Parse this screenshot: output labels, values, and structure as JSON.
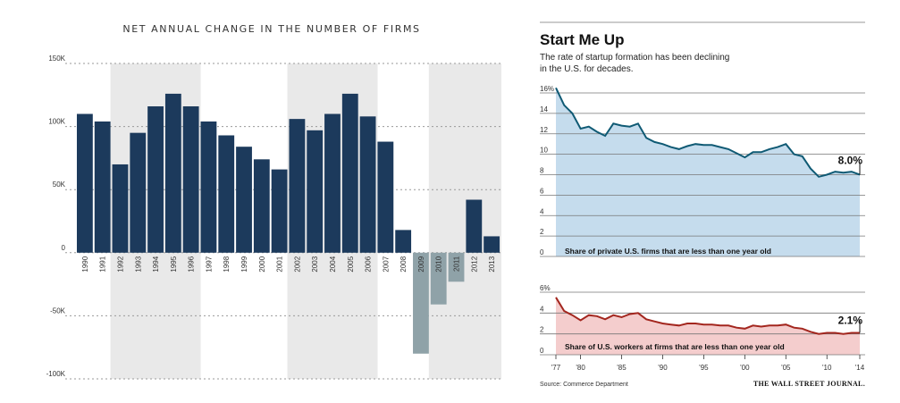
{
  "chart_data": [
    {
      "type": "bar",
      "title": "NET ANNUAL CHANGE IN THE NUMBER OF FIRMS",
      "ylim": [
        -100000,
        150000
      ],
      "ytick_labels": [
        "150K",
        "100K",
        "50K",
        "0",
        "-50K",
        "-100K"
      ],
      "ytick_values": [
        150000,
        100000,
        50000,
        0,
        -50000,
        -100000
      ],
      "grid": true,
      "categories": [
        "1990",
        "1991",
        "1992",
        "1993",
        "1994",
        "1995",
        "1996",
        "1997",
        "1998",
        "1999",
        "2000",
        "2001",
        "2002",
        "2003",
        "2004",
        "2005",
        "2006",
        "2007",
        "2008",
        "2009",
        "2010",
        "2011",
        "2012",
        "2013"
      ],
      "values": [
        110000,
        104000,
        70000,
        95000,
        116000,
        126000,
        116000,
        104000,
        93000,
        84000,
        74000,
        66000,
        106000,
        97000,
        110000,
        126000,
        108000,
        88000,
        18000,
        -80000,
        -41000,
        -23000,
        42000,
        13000
      ],
      "shaded_periods": [
        [
          "1992",
          "1996"
        ],
        [
          "2002",
          "2006"
        ],
        [
          "2010",
          "2013"
        ]
      ],
      "colors": {
        "positive": "#1c3a5c",
        "negative": "#8fa2a8",
        "shade": "#e9e9e9"
      }
    },
    {
      "type": "area",
      "title": "Start Me Up",
      "subtitle_lines": [
        "The rate of startup formation has been declining",
        "in the U.S. for decades."
      ],
      "caption": "Share of private U.S. firms that are less than one year old",
      "ylim": [
        0,
        16
      ],
      "ytick_labels": [
        "16%",
        "14",
        "12",
        "10",
        "8",
        "6",
        "4",
        "2",
        "0"
      ],
      "ytick_values": [
        16,
        14,
        12,
        10,
        8,
        6,
        4,
        2,
        0
      ],
      "end_label": "8.0%",
      "x": [
        1977,
        1978,
        1979,
        1980,
        1981,
        1982,
        1983,
        1984,
        1985,
        1986,
        1987,
        1988,
        1989,
        1990,
        1991,
        1992,
        1993,
        1994,
        1995,
        1996,
        1997,
        1998,
        1999,
        2000,
        2001,
        2002,
        2003,
        2004,
        2005,
        2006,
        2007,
        2008,
        2009,
        2010,
        2011,
        2012,
        2013,
        2014
      ],
      "values": [
        16.5,
        14.8,
        14.0,
        12.5,
        12.7,
        12.2,
        11.8,
        13.0,
        12.8,
        12.7,
        13.0,
        11.6,
        11.2,
        11.0,
        10.7,
        10.5,
        10.8,
        11.0,
        10.9,
        10.9,
        10.7,
        10.5,
        10.1,
        9.7,
        10.2,
        10.2,
        10.5,
        10.7,
        11.0,
        10.0,
        9.8,
        8.6,
        7.8,
        8.0,
        8.3,
        8.2,
        8.3,
        8.0
      ],
      "colors": {
        "line": "#0f5a74",
        "fill": "#c5dced"
      }
    },
    {
      "type": "area",
      "caption": "Share of U.S. workers at firms that are less than one year old",
      "ylim": [
        0,
        6
      ],
      "ytick_labels": [
        "6%",
        "4",
        "2",
        "0"
      ],
      "ytick_values": [
        6,
        4,
        2,
        0
      ],
      "end_label": "2.1%",
      "x": [
        1977,
        1978,
        1979,
        1980,
        1981,
        1982,
        1983,
        1984,
        1985,
        1986,
        1987,
        1988,
        1989,
        1990,
        1991,
        1992,
        1993,
        1994,
        1995,
        1996,
        1997,
        1998,
        1999,
        2000,
        2001,
        2002,
        2003,
        2004,
        2005,
        2006,
        2007,
        2008,
        2009,
        2010,
        2011,
        2012,
        2013,
        2014
      ],
      "values": [
        5.5,
        4.2,
        3.8,
        3.3,
        3.8,
        3.7,
        3.4,
        3.8,
        3.6,
        3.9,
        4.0,
        3.4,
        3.2,
        3.0,
        2.9,
        2.8,
        3.0,
        3.0,
        2.9,
        2.9,
        2.8,
        2.8,
        2.6,
        2.5,
        2.8,
        2.7,
        2.8,
        2.8,
        2.9,
        2.6,
        2.5,
        2.2,
        2.0,
        2.1,
        2.1,
        2.0,
        2.1,
        2.1
      ],
      "xtick_labels": [
        "'77",
        "'80",
        "'85",
        "'90",
        "'95",
        "'00",
        "'05",
        "'10",
        "'14"
      ],
      "xtick_values": [
        1977,
        1980,
        1985,
        1990,
        1995,
        2000,
        2005,
        2010,
        2014
      ],
      "colors": {
        "line": "#a3261e",
        "fill": "#f4cdcd"
      }
    }
  ],
  "footer": {
    "source": "Source: Commerce Department",
    "brand": "THE WALL STREET JOURNAL."
  }
}
